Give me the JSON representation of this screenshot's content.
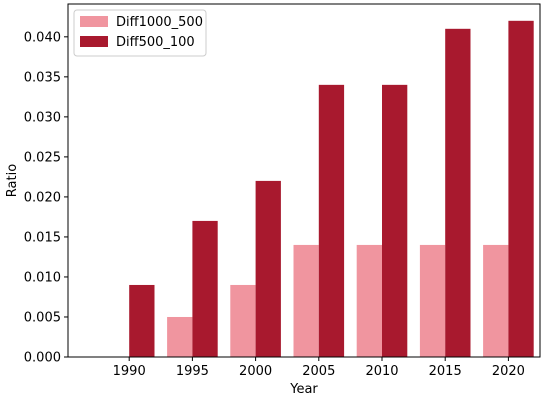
{
  "chart_data": {
    "type": "bar",
    "title": "",
    "xlabel": "Year",
    "ylabel": "Ratio",
    "categories": [
      "1990",
      "1995",
      "2000",
      "2005",
      "2010",
      "2015",
      "2020"
    ],
    "series": [
      {
        "name": "Diff1000_500",
        "color": "#f0959f",
        "values": [
          0.0,
          0.005,
          0.009,
          0.014,
          0.014,
          0.014,
          0.014
        ]
      },
      {
        "name": "Diff500_100",
        "color": "#a8192e",
        "values": [
          0.009,
          0.017,
          0.022,
          0.034,
          0.034,
          0.041,
          0.042
        ]
      }
    ],
    "ylim": [
      0,
      0.0441
    ],
    "yticks": [
      "0.000",
      "0.005",
      "0.010",
      "0.015",
      "0.020",
      "0.025",
      "0.030",
      "0.035",
      "0.040"
    ],
    "grid": false,
    "legend_position": "top-left"
  }
}
